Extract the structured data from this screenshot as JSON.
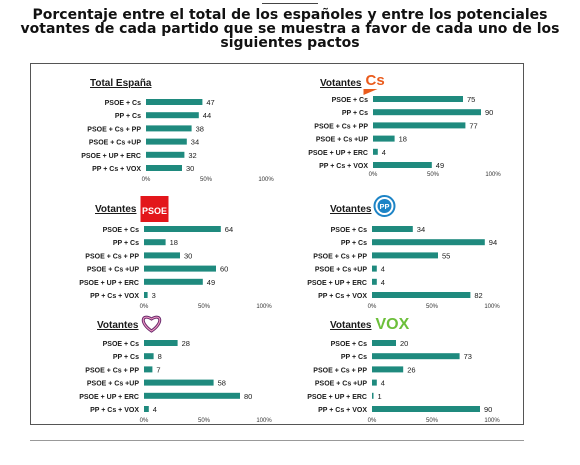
{
  "title": "Porcentaje entre el total de los españoles y entre los potenciales votantes de cada partido que se muestra a favor de cada uno de los siguientes pactos",
  "colors": {
    "bar": "#1f8a7e",
    "text": "#1a1a1a",
    "psoe_red": "#e3161b",
    "cs_orange": "#ea5b1c",
    "pp_blue": "#1d84c6",
    "vox_green": "#6cbf3a",
    "podemos_purple": "#6b2c6e"
  },
  "chart_data": [
    {
      "type": "bar",
      "orientation": "horizontal",
      "title": "Total España",
      "logo": null,
      "categories": [
        "PSOE + Cs",
        "PP + Cs",
        "PSOE + Cs + PP",
        "PSOE + Cs +UP",
        "PSOE + UP + ERC",
        "PP + Cs + VOX"
      ],
      "values": [
        47,
        44,
        38,
        34,
        32,
        30
      ],
      "xlim": [
        0,
        100
      ],
      "xticks": [
        "0%",
        "50%",
        "100%"
      ]
    },
    {
      "type": "bar",
      "orientation": "horizontal",
      "title": "Votantes",
      "logo": "cs-logo",
      "categories": [
        "PSOE + Cs",
        "PP + Cs",
        "PSOE + Cs + PP",
        "PSOE + Cs +UP",
        "PSOE + UP + ERC",
        "PP + Cs + VOX"
      ],
      "values": [
        75,
        90,
        77,
        18,
        4,
        49
      ],
      "xlim": [
        0,
        100
      ],
      "xticks": [
        "0%",
        "50%",
        "100%"
      ]
    },
    {
      "type": "bar",
      "orientation": "horizontal",
      "title": "Votantes",
      "logo": "psoe-logo",
      "logo_text": "PSOE",
      "categories": [
        "PSOE + Cs",
        "PP + Cs",
        "PSOE + Cs + PP",
        "PSOE + Cs +UP",
        "PSOE + UP + ERC",
        "PP + Cs + VOX"
      ],
      "values": [
        64,
        18,
        30,
        60,
        49,
        3
      ],
      "xlim": [
        0,
        100
      ],
      "xticks": [
        "0%",
        "50%",
        "100%"
      ]
    },
    {
      "type": "bar",
      "orientation": "horizontal",
      "title": "Votantes",
      "logo": "pp-logo",
      "logo_text": "PP",
      "categories": [
        "PSOE + Cs",
        "PP + Cs",
        "PSOE + Cs + PP",
        "PSOE + Cs +UP",
        "PSOE + UP + ERC",
        "PP + Cs + VOX"
      ],
      "values": [
        34,
        94,
        55,
        4,
        4,
        82
      ],
      "xlim": [
        0,
        100
      ],
      "xticks": [
        "0%",
        "50%",
        "100%"
      ]
    },
    {
      "type": "bar",
      "orientation": "horizontal",
      "title": "Votantes",
      "logo": "podemos-logo",
      "categories": [
        "PSOE + Cs",
        "PP + Cs",
        "PSOE + Cs + PP",
        "PSOE + Cs +UP",
        "PSOE + UP + ERC",
        "PP + Cs + VOX"
      ],
      "values": [
        28,
        8,
        7,
        58,
        80,
        4
      ],
      "xlim": [
        0,
        100
      ],
      "xticks": [
        "0%",
        "50%",
        "100%"
      ]
    },
    {
      "type": "bar",
      "orientation": "horizontal",
      "title": "Votantes",
      "logo": "vox-logo",
      "logo_text": "VOX",
      "categories": [
        "PSOE + Cs",
        "PP + Cs",
        "PSOE + Cs + PP",
        "PSOE + Cs +UP",
        "PSOE + UP + ERC",
        "PP + Cs + VOX"
      ],
      "values": [
        20,
        73,
        26,
        4,
        1,
        90
      ],
      "xlim": [
        0,
        100
      ],
      "xticks": [
        "0%",
        "50%",
        "100%"
      ]
    }
  ]
}
